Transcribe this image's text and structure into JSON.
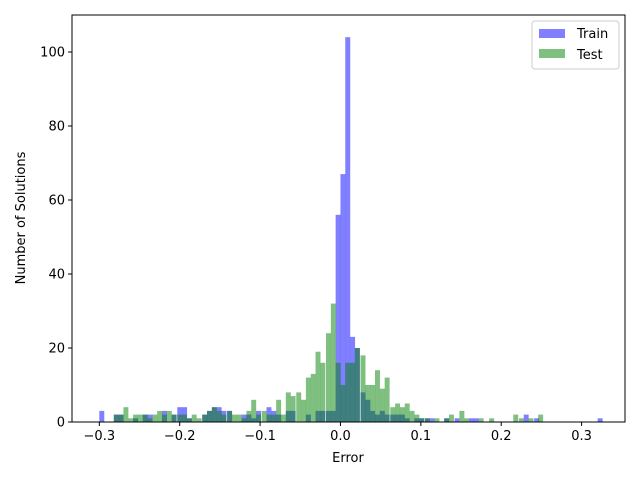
{
  "chart_data": {
    "type": "bar",
    "title": "",
    "xlabel": "Error",
    "ylabel": "Number of Solutions",
    "xlim": [
      -0.334,
      0.354
    ],
    "ylim": [
      0,
      110
    ],
    "grid": false,
    "legend_position": "top-right",
    "x_ticks": [
      -0.3,
      -0.2,
      -0.1,
      0.0,
      0.1,
      0.2,
      0.3
    ],
    "x_tick_labels": [
      "−0.3",
      "−0.2",
      "−0.1",
      "0.0",
      "0.1",
      "0.2",
      "0.3"
    ],
    "y_ticks": [
      0,
      20,
      40,
      60,
      80,
      100
    ],
    "y_tick_labels": [
      "0",
      "20",
      "40",
      "60",
      "80",
      "100"
    ],
    "series": [
      {
        "name": "Train",
        "color": "#0000ff",
        "alpha": 0.5,
        "bin_width": 0.00615,
        "bins": [
          [
            -0.3,
            3
          ],
          [
            -0.282,
            2
          ],
          [
            -0.276,
            2
          ],
          [
            -0.258,
            1
          ],
          [
            -0.246,
            2
          ],
          [
            -0.24,
            2
          ],
          [
            -0.222,
            3
          ],
          [
            -0.21,
            2
          ],
          [
            -0.203,
            4
          ],
          [
            -0.197,
            4
          ],
          [
            -0.191,
            1
          ],
          [
            -0.172,
            2
          ],
          [
            -0.166,
            3
          ],
          [
            -0.16,
            4
          ],
          [
            -0.154,
            4
          ],
          [
            -0.148,
            3
          ],
          [
            -0.141,
            3
          ],
          [
            -0.123,
            2
          ],
          [
            -0.117,
            2
          ],
          [
            -0.111,
            1
          ],
          [
            -0.105,
            3
          ],
          [
            -0.092,
            4
          ],
          [
            -0.086,
            3
          ],
          [
            -0.08,
            2
          ],
          [
            -0.068,
            3
          ],
          [
            -0.062,
            3
          ],
          [
            -0.043,
            2
          ],
          [
            -0.031,
            3
          ],
          [
            -0.025,
            3
          ],
          [
            -0.018,
            3
          ],
          [
            -0.012,
            3
          ],
          [
            -0.006,
            56
          ],
          [
            0.0,
            67
          ],
          [
            0.006,
            104
          ],
          [
            0.012,
            23
          ],
          [
            0.018,
            20
          ],
          [
            0.025,
            8
          ],
          [
            0.031,
            6
          ],
          [
            0.037,
            3
          ],
          [
            0.043,
            2
          ],
          [
            0.049,
            3
          ],
          [
            0.055,
            2
          ],
          [
            0.062,
            2
          ],
          [
            0.068,
            2
          ],
          [
            0.074,
            2
          ],
          [
            0.08,
            1
          ],
          [
            0.092,
            1
          ],
          [
            0.098,
            1
          ],
          [
            0.105,
            1
          ],
          [
            0.111,
            1
          ],
          [
            0.129,
            1
          ],
          [
            0.142,
            1
          ],
          [
            0.16,
            1
          ],
          [
            0.166,
            1
          ],
          [
            0.228,
            2
          ],
          [
            0.241,
            1
          ],
          [
            0.32,
            1
          ]
        ]
      },
      {
        "name": "Test",
        "color": "#008000",
        "alpha": 0.5,
        "bin_width": 0.00615,
        "bins": [
          [
            -0.282,
            2
          ],
          [
            -0.276,
            2
          ],
          [
            -0.27,
            4
          ],
          [
            -0.264,
            1
          ],
          [
            -0.258,
            2
          ],
          [
            -0.252,
            2
          ],
          [
            -0.246,
            2
          ],
          [
            -0.24,
            1
          ],
          [
            -0.234,
            2
          ],
          [
            -0.228,
            3
          ],
          [
            -0.222,
            2
          ],
          [
            -0.216,
            3
          ],
          [
            -0.21,
            2
          ],
          [
            -0.203,
            2
          ],
          [
            -0.197,
            2
          ],
          [
            -0.191,
            1
          ],
          [
            -0.185,
            2
          ],
          [
            -0.179,
            1
          ],
          [
            -0.172,
            2
          ],
          [
            -0.166,
            3
          ],
          [
            -0.16,
            4
          ],
          [
            -0.154,
            3
          ],
          [
            -0.148,
            2
          ],
          [
            -0.141,
            3
          ],
          [
            -0.135,
            2
          ],
          [
            -0.129,
            2
          ],
          [
            -0.123,
            1
          ],
          [
            -0.117,
            3
          ],
          [
            -0.111,
            6
          ],
          [
            -0.105,
            2
          ],
          [
            -0.098,
            3
          ],
          [
            -0.092,
            2
          ],
          [
            -0.086,
            2
          ],
          [
            -0.08,
            6
          ],
          [
            -0.074,
            2
          ],
          [
            -0.068,
            8
          ],
          [
            -0.062,
            7
          ],
          [
            -0.055,
            8
          ],
          [
            -0.049,
            6
          ],
          [
            -0.043,
            12
          ],
          [
            -0.037,
            13
          ],
          [
            -0.031,
            19
          ],
          [
            -0.025,
            16
          ],
          [
            -0.018,
            24
          ],
          [
            -0.012,
            32
          ],
          [
            -0.006,
            16
          ],
          [
            0.0,
            10
          ],
          [
            0.006,
            16
          ],
          [
            0.012,
            16
          ],
          [
            0.018,
            20
          ],
          [
            0.025,
            18
          ],
          [
            0.031,
            10
          ],
          [
            0.037,
            10
          ],
          [
            0.043,
            14
          ],
          [
            0.049,
            9
          ],
          [
            0.055,
            12
          ],
          [
            0.062,
            4
          ],
          [
            0.068,
            5
          ],
          [
            0.074,
            4
          ],
          [
            0.08,
            5
          ],
          [
            0.086,
            3
          ],
          [
            0.092,
            2
          ],
          [
            0.098,
            1
          ],
          [
            0.105,
            1
          ],
          [
            0.117,
            1
          ],
          [
            0.129,
            1
          ],
          [
            0.135,
            2
          ],
          [
            0.148,
            3
          ],
          [
            0.154,
            1
          ],
          [
            0.172,
            1
          ],
          [
            0.185,
            1
          ],
          [
            0.215,
            2
          ],
          [
            0.222,
            1
          ],
          [
            0.234,
            1
          ],
          [
            0.246,
            2
          ]
        ]
      }
    ]
  }
}
